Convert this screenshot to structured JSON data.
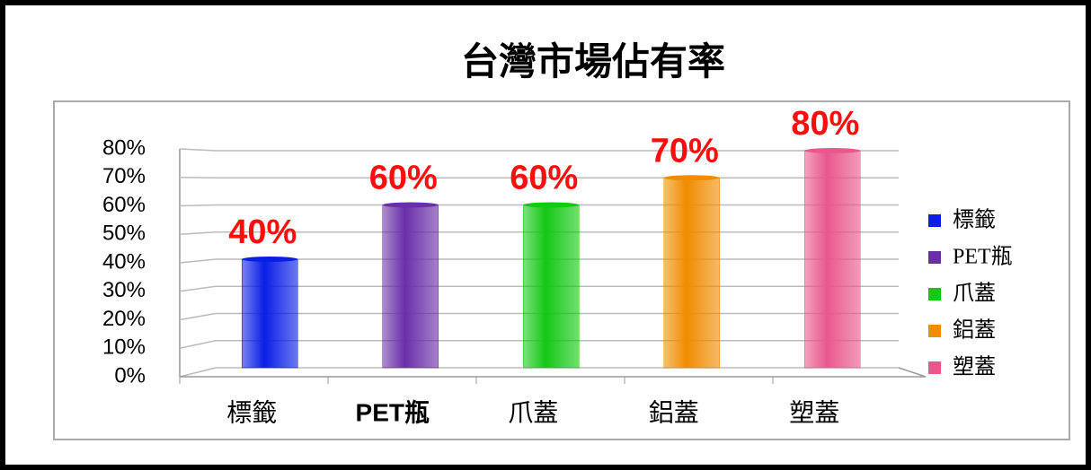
{
  "chart_data": {
    "type": "bar",
    "title": "台灣市場佔有率",
    "categories": [
      "標籤",
      "PET瓶",
      "爪蓋",
      "鋁蓋",
      "塑蓋"
    ],
    "series": [
      {
        "name": "市場佔有率",
        "values": [
          40,
          60,
          60,
          70,
          80
        ],
        "value_labels": [
          "40%",
          "60%",
          "60%",
          "70%",
          "80%"
        ]
      }
    ],
    "colors": [
      "#0a1ee6",
      "#6a2fa8",
      "#14c814",
      "#f08c00",
      "#e8588c"
    ],
    "ylim": [
      0,
      80
    ],
    "yticks": [
      {
        "value": 0,
        "label": "0%"
      },
      {
        "value": 10,
        "label": "10%"
      },
      {
        "value": 20,
        "label": "20%"
      },
      {
        "value": 30,
        "label": "30%"
      },
      {
        "value": 40,
        "label": "40%"
      },
      {
        "value": 50,
        "label": "50%"
      },
      {
        "value": 60,
        "label": "60%"
      },
      {
        "value": 70,
        "label": "70%"
      },
      {
        "value": 80,
        "label": "80%"
      }
    ],
    "grid": true,
    "legend": "right"
  }
}
